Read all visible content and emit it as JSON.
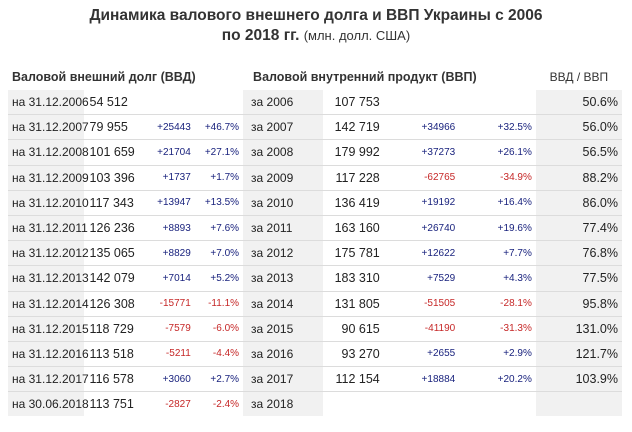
{
  "title": {
    "line1": "Динамика валового внешнего долга и ВВП Украины с 2006",
    "line2": "по 2018 гг.",
    "unit": "(млн. долл. США)"
  },
  "headers": {
    "debt": "Валовой внешний долг (ВВД)",
    "gdp": "Валовой внутренний продукт (ВВП)",
    "ratio": "ВВД / ВВП"
  },
  "rows": [
    {
      "date": "на 31.12.2006",
      "debt": "54 512",
      "debt_chg": "",
      "debt_pct": "",
      "year": "за 2006",
      "gdp": "107 753",
      "gdp_chg": "",
      "gdp_pct": "",
      "ratio": "50.6%"
    },
    {
      "date": "на 31.12.2007",
      "debt": "79 955",
      "debt_chg": "+25443",
      "debt_pct": "+46.7%",
      "year": "за 2007",
      "gdp": "142 719",
      "gdp_chg": "+34966",
      "gdp_pct": "+32.5%",
      "ratio": "56.0%"
    },
    {
      "date": "на 31.12.2008",
      "debt": "101 659",
      "debt_chg": "+21704",
      "debt_pct": "+27.1%",
      "year": "за 2008",
      "gdp": "179 992",
      "gdp_chg": "+37273",
      "gdp_pct": "+26.1%",
      "ratio": "56.5%"
    },
    {
      "date": "на 31.12.2009",
      "debt": "103 396",
      "debt_chg": "+1737",
      "debt_pct": "+1.7%",
      "year": "за 2009",
      "gdp": "117 228",
      "gdp_chg": "-62765",
      "gdp_pct": "-34.9%",
      "ratio": "88.2%"
    },
    {
      "date": "на 31.12.2010",
      "debt": "117 343",
      "debt_chg": "+13947",
      "debt_pct": "+13.5%",
      "year": "за 2010",
      "gdp": "136 419",
      "gdp_chg": "+19192",
      "gdp_pct": "+16.4%",
      "ratio": "86.0%"
    },
    {
      "date": "на 31.12.2011",
      "debt": "126 236",
      "debt_chg": "+8893",
      "debt_pct": "+7.6%",
      "year": "за 2011",
      "gdp": "163 160",
      "gdp_chg": "+26740",
      "gdp_pct": "+19.6%",
      "ratio": "77.4%"
    },
    {
      "date": "на 31.12.2012",
      "debt": "135 065",
      "debt_chg": "+8829",
      "debt_pct": "+7.0%",
      "year": "за 2012",
      "gdp": "175 781",
      "gdp_chg": "+12622",
      "gdp_pct": "+7.7%",
      "ratio": "76.8%"
    },
    {
      "date": "на 31.12.2013",
      "debt": "142 079",
      "debt_chg": "+7014",
      "debt_pct": "+5.2%",
      "year": "за 2013",
      "gdp": "183 310",
      "gdp_chg": "+7529",
      "gdp_pct": "+4.3%",
      "ratio": "77.5%"
    },
    {
      "date": "на 31.12.2014",
      "debt": "126 308",
      "debt_chg": "-15771",
      "debt_pct": "-11.1%",
      "year": "за 2014",
      "gdp": "131 805",
      "gdp_chg": "-51505",
      "gdp_pct": "-28.1%",
      "ratio": "95.8%"
    },
    {
      "date": "на 31.12.2015",
      "debt": "118 729",
      "debt_chg": "-7579",
      "debt_pct": "-6.0%",
      "year": "за 2015",
      "gdp": "90 615",
      "gdp_chg": "-41190",
      "gdp_pct": "-31.3%",
      "ratio": "131.0%"
    },
    {
      "date": "на 31.12.2016",
      "debt": "113 518",
      "debt_chg": "-5211",
      "debt_pct": "-4.4%",
      "year": "за 2016",
      "gdp": "93 270",
      "gdp_chg": "+2655",
      "gdp_pct": "+2.9%",
      "ratio": "121.7%"
    },
    {
      "date": "на 31.12.2017",
      "debt": "116 578",
      "debt_chg": "+3060",
      "debt_pct": "+2.7%",
      "year": "за 2017",
      "gdp": "112 154",
      "gdp_chg": "+18884",
      "gdp_pct": "+20.2%",
      "ratio": "103.9%"
    },
    {
      "date": "на 30.06.2018",
      "debt": "113 751",
      "debt_chg": "-2827",
      "debt_pct": "-2.4%",
      "year": "за 2018",
      "gdp": "",
      "gdp_chg": "",
      "gdp_pct": "",
      "ratio": ""
    }
  ]
}
